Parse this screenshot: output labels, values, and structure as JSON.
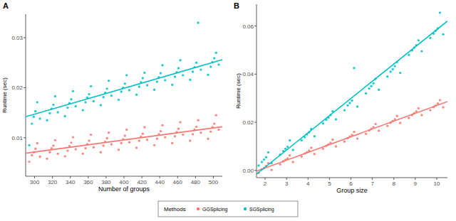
{
  "chart_data": [
    {
      "type": "scatter",
      "title": "A",
      "x_label": "Number of groups",
      "y_label": "Runtime (sec)",
      "xlim": [
        290,
        510
      ],
      "ylim": [
        0.0023,
        0.0347
      ],
      "xticks": [
        300,
        320,
        340,
        360,
        380,
        400,
        420,
        440,
        460,
        480,
        500
      ],
      "yticks": [
        0.01,
        0.02,
        0.03
      ],
      "grid": false,
      "legend": "bottom",
      "legend_title": "Methods",
      "series": [
        {
          "name": "GGSplicing",
          "color": "#F8766D",
          "marker": "circle",
          "x": [
            294,
            297,
            299,
            301,
            303,
            306,
            314,
            317,
            319,
            321,
            323,
            326,
            334,
            337,
            339,
            341,
            343,
            346,
            354,
            357,
            359,
            361,
            363,
            366,
            374,
            377,
            379,
            381,
            383,
            386,
            394,
            397,
            399,
            401,
            403,
            406,
            414,
            417,
            419,
            421,
            423,
            426,
            434,
            437,
            439,
            441,
            443,
            446,
            454,
            457,
            459,
            461,
            463,
            466,
            474,
            477,
            479,
            481,
            483,
            486,
            494,
            497,
            499,
            501,
            503,
            506
          ],
          "values": [
            0.0052,
            0.0065,
            0.0071,
            0.0078,
            0.0089,
            0.0062,
            0.0058,
            0.0071,
            0.0079,
            0.0084,
            0.0095,
            0.0068,
            0.0063,
            0.0074,
            0.0083,
            0.009,
            0.0101,
            0.0077,
            0.0068,
            0.0079,
            0.0087,
            0.0094,
            0.0106,
            0.0081,
            0.0071,
            0.0084,
            0.0092,
            0.0099,
            0.011,
            0.0087,
            0.0076,
            0.0089,
            0.0097,
            0.0104,
            0.0116,
            0.0091,
            0.008,
            0.0094,
            0.0102,
            0.0108,
            0.0121,
            0.0096,
            0.0085,
            0.0098,
            0.0107,
            0.0113,
            0.0125,
            0.0101,
            0.0089,
            0.0103,
            0.0111,
            0.0118,
            0.0131,
            0.0106,
            0.0094,
            0.0107,
            0.0116,
            0.0122,
            0.0135,
            0.011,
            0.0098,
            0.0112,
            0.0121,
            0.0128,
            0.0145,
            0.0116
          ],
          "trend": {
            "x": [
              290,
              510
            ],
            "values": [
              0.0069,
              0.0122
            ]
          }
        },
        {
          "name": "SGSplicing",
          "color": "#00BFC4",
          "marker": "circle",
          "x": [
            294,
            297,
            299,
            301,
            303,
            306,
            314,
            317,
            319,
            321,
            323,
            326,
            334,
            337,
            339,
            341,
            343,
            346,
            354,
            357,
            359,
            361,
            363,
            366,
            374,
            377,
            379,
            381,
            383,
            386,
            394,
            397,
            399,
            401,
            403,
            406,
            414,
            417,
            419,
            421,
            423,
            426,
            434,
            437,
            439,
            441,
            443,
            446,
            454,
            457,
            459,
            461,
            463,
            466,
            474,
            477,
            479,
            481,
            483,
            486,
            494,
            497,
            499,
            501,
            503,
            506
          ],
          "values": [
            0.0085,
            0.0128,
            0.0142,
            0.0153,
            0.0171,
            0.0138,
            0.0135,
            0.0149,
            0.0158,
            0.0166,
            0.0183,
            0.0151,
            0.0143,
            0.016,
            0.0169,
            0.0177,
            0.0193,
            0.0163,
            0.0155,
            0.0171,
            0.018,
            0.0187,
            0.0203,
            0.0173,
            0.0165,
            0.0181,
            0.019,
            0.0198,
            0.0214,
            0.0184,
            0.0176,
            0.0192,
            0.02,
            0.0208,
            0.0225,
            0.0195,
            0.0186,
            0.0202,
            0.0211,
            0.0219,
            0.023,
            0.0205,
            0.0196,
            0.0212,
            0.0221,
            0.0229,
            0.0245,
            0.0215,
            0.0206,
            0.0222,
            0.0231,
            0.0239,
            0.0255,
            0.0225,
            0.0216,
            0.0232,
            0.0241,
            0.025,
            0.033,
            0.0236,
            0.0226,
            0.0242,
            0.0251,
            0.0259,
            0.027,
            0.0246
          ],
          "trend": {
            "x": [
              290,
              510
            ],
            "values": [
              0.0142,
              0.0256
            ]
          }
        }
      ]
    },
    {
      "type": "scatter",
      "title": "B",
      "x_label": "Group size",
      "y_label": "Runtime (sec)",
      "xlim": [
        1.6,
        10.5
      ],
      "ylim": [
        -0.003,
        0.069
      ],
      "xticks": [
        2,
        3,
        4,
        5,
        6,
        7,
        8,
        9,
        10
      ],
      "yticks": [
        {
          "value": 0,
          "label": "0.00"
        },
        0.02,
        0.04,
        0.06
      ],
      "grid": false,
      "series": [
        {
          "name": "GGSplicing",
          "color": "#F8766D",
          "marker": "circle",
          "x": [
            1.7,
            1.85,
            1.95,
            2.05,
            2.15,
            2.3,
            2.7,
            2.85,
            2.95,
            3.05,
            3.15,
            3.3,
            3.7,
            3.85,
            3.95,
            4.05,
            4.15,
            4.3,
            4.7,
            4.85,
            4.95,
            5.05,
            5.15,
            5.3,
            5.7,
            5.85,
            5.95,
            6.05,
            6.15,
            6.3,
            6.7,
            6.85,
            6.95,
            7.05,
            7.15,
            7.3,
            7.7,
            7.85,
            7.95,
            8.05,
            8.15,
            8.3,
            8.7,
            8.85,
            8.95,
            9.05,
            9.15,
            9.3,
            9.7,
            9.85,
            9.95,
            10.05,
            10.15,
            10.3
          ],
          "values": [
            -0.001,
            0.0005,
            0.001,
            0.0018,
            0.003,
            0.0002,
            0.0025,
            0.0038,
            0.0044,
            0.005,
            0.0062,
            0.0035,
            0.0058,
            0.007,
            0.0076,
            0.0082,
            0.0094,
            0.0068,
            0.009,
            0.0102,
            0.0108,
            0.0115,
            0.0128,
            0.01,
            0.012,
            0.0134,
            0.014,
            0.0147,
            0.016,
            0.0132,
            0.0152,
            0.0166,
            0.0173,
            0.018,
            0.0193,
            0.0165,
            0.0185,
            0.0198,
            0.0205,
            0.0212,
            0.0226,
            0.0197,
            0.0218,
            0.023,
            0.0238,
            0.0245,
            0.0258,
            0.023,
            0.025,
            0.0263,
            0.027,
            0.0278,
            0.0292,
            0.0262
          ],
          "trend": {
            "x": [
              1.6,
              10.5
            ],
            "values": [
              -0.0003,
              0.0286
            ]
          }
        },
        {
          "name": "SGSplicing",
          "color": "#00BFC4",
          "marker": "circle",
          "x": [
            1.7,
            1.85,
            1.95,
            2.05,
            2.15,
            2.3,
            2.7,
            2.85,
            2.95,
            3.05,
            3.15,
            3.3,
            3.7,
            3.85,
            3.95,
            4.05,
            4.15,
            4.3,
            4.7,
            4.85,
            4.95,
            5.05,
            5.15,
            5.3,
            5.7,
            5.85,
            5.95,
            6.05,
            6.15,
            6.3,
            6.7,
            6.85,
            6.95,
            7.05,
            7.15,
            7.3,
            7.7,
            7.85,
            7.95,
            8.05,
            8.15,
            8.3,
            8.7,
            8.85,
            8.95,
            9.05,
            9.15,
            9.3,
            9.7,
            9.85,
            9.95,
            10.05,
            10.15,
            10.3
          ],
          "values": [
            0.002,
            0.0035,
            0.0045,
            0.0055,
            0.0075,
            0.003,
            0.0065,
            0.008,
            0.009,
            0.0098,
            0.0125,
            0.0085,
            0.0125,
            0.0138,
            0.015,
            0.0158,
            0.0172,
            0.0142,
            0.0195,
            0.021,
            0.022,
            0.023,
            0.0245,
            0.0212,
            0.025,
            0.027,
            0.028,
            0.029,
            0.0425,
            0.0265,
            0.032,
            0.034,
            0.035,
            0.0362,
            0.038,
            0.0335,
            0.039,
            0.041,
            0.042,
            0.0433,
            0.045,
            0.0405,
            0.048,
            0.0498,
            0.051,
            0.052,
            0.054,
            0.0495,
            0.055,
            0.0568,
            0.058,
            0.059,
            0.0655,
            0.0565
          ],
          "trend": {
            "x": [
              1.6,
              10.5
            ],
            "values": [
              -0.0015,
              0.062
            ]
          }
        }
      ]
    }
  ]
}
